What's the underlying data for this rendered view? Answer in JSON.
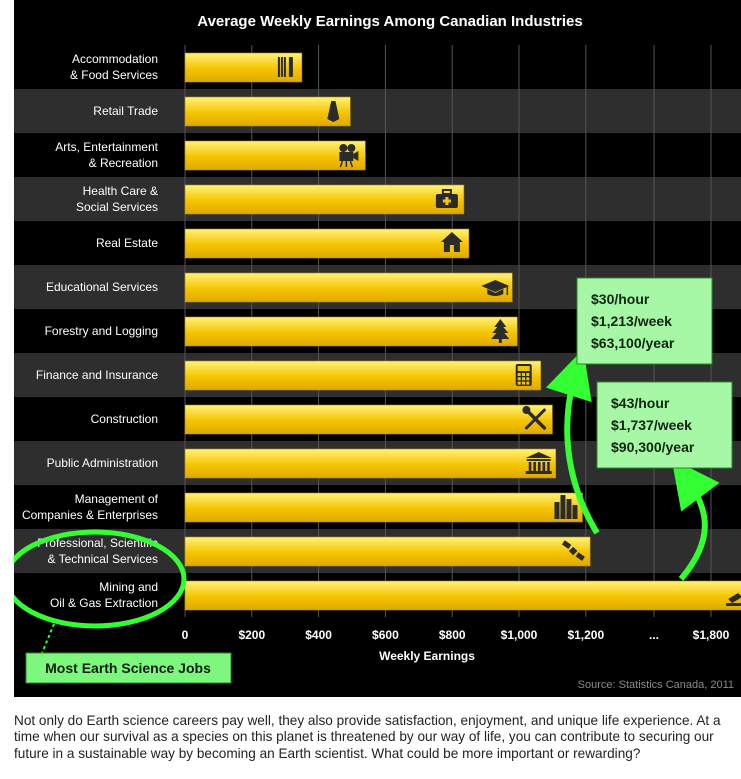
{
  "chart_data": {
    "type": "bar",
    "title": "Average Weekly Earnings Among Canadian Industries",
    "xlabel": "Weekly Earnings",
    "ylabel": "",
    "xlim": [
      0,
      1800
    ],
    "orientation": "horizontal",
    "grid": true,
    "categories": [
      "Accommodation\n& Food Services",
      "Retail Trade",
      "Arts, Entertainment\n& Recreation",
      "Health Care &\nSocial Services",
      "Real Estate",
      "Educational Services",
      "Forestry and Logging",
      "Finance and Insurance",
      "Construction",
      "Public Administration",
      "Management of\nCompanies & Enterprises",
      "Professional, Scientific\n& Technical Services",
      "Mining and\nOil & Gas Extraction"
    ],
    "values": [
      350,
      495,
      540,
      835,
      850,
      980,
      995,
      1065,
      1100,
      1110,
      1190,
      1213,
      1737
    ],
    "icons": [
      "fork-knife-icon",
      "shopping-bag-icon",
      "movie-camera-icon",
      "medical-kit-icon",
      "house-icon",
      "graduation-cap-icon",
      "pine-tree-icon",
      "calculator-icon",
      "wrench-screwdriver-icon",
      "government-building-icon",
      "city-skyline-icon",
      "satellite-icon",
      "oil-pump-icon"
    ],
    "x_ticks": [
      "0",
      "$200",
      "$400",
      "$600",
      "$800",
      "$1,000",
      "$1,200",
      "...",
      "$1,800"
    ],
    "annotations": [
      {
        "lines": [
          "$30/hour",
          "$1,213/week",
          "$63,100/year"
        ],
        "points_to": "Professional, Scientific & Technical Services"
      },
      {
        "lines": [
          "$43/hour",
          "$1,737/week",
          "$90,300/year"
        ],
        "points_to": "Mining and Oil & Gas Extraction"
      }
    ],
    "highlight_label": "Most Earth Science Jobs",
    "source": "Source: Statistics Canada, 2011"
  },
  "colors": {
    "background": "#000000",
    "row_alt": "#2e2e2e",
    "bar_light": "#fff27a",
    "bar_dark": "#f5c400",
    "highlight_green": "#33ff33",
    "callout_bg": "#a6f7a6",
    "label_bg": "#7ef77e"
  },
  "body_text": "Not only do Earth science careers pay well, they also provide satisfaction, enjoyment, and unique life experience. At a time when our survival as a species on this planet is threatened by our way of life, you can contribute to securing our future in a sustainable way by becoming an Earth scientist. What could be more important or rewarding?"
}
